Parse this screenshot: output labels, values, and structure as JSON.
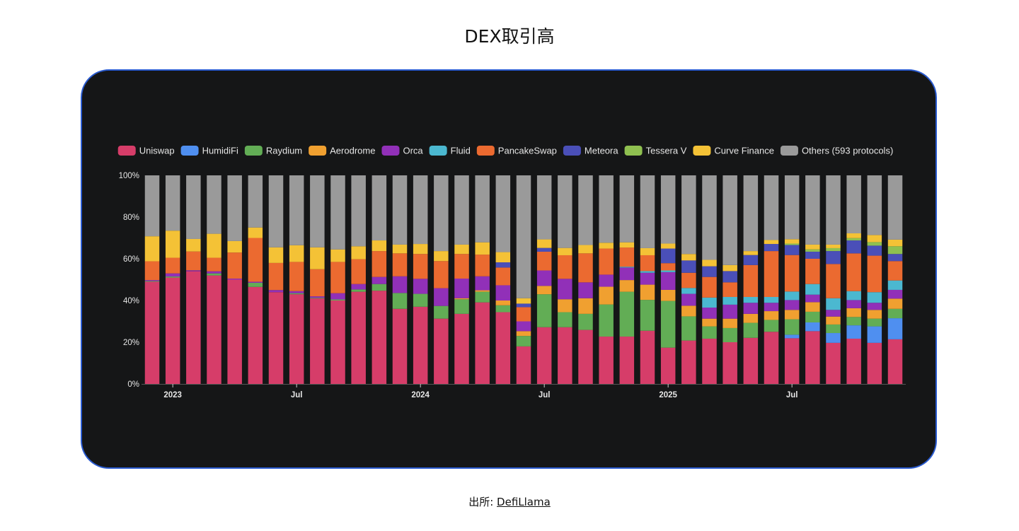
{
  "title": "DEX取引高",
  "source": {
    "label": "出所:",
    "link_text": "DefiLlama"
  },
  "chart_data": {
    "type": "bar",
    "stacked": true,
    "normalized": true,
    "title": "",
    "xlabel": "",
    "ylabel": "",
    "ylim": [
      0,
      100
    ],
    "y_ticks": [
      "0%",
      "20%",
      "40%",
      "60%",
      "80%",
      "100%"
    ],
    "x_tick_labels": [
      {
        "category": "2023-01",
        "label": "2023"
      },
      {
        "category": "2023-07",
        "label": "Jul"
      },
      {
        "category": "2024-01",
        "label": "2024"
      },
      {
        "category": "2024-07",
        "label": "Jul"
      },
      {
        "category": "2025-01",
        "label": "2025"
      },
      {
        "category": "2025-07",
        "label": "Jul"
      }
    ],
    "legend_position": "top",
    "grid": false,
    "background": "#151617",
    "categories": [
      "2022-12",
      "2023-01",
      "2023-02",
      "2023-03",
      "2023-04",
      "2023-05",
      "2023-06",
      "2023-07",
      "2023-08",
      "2023-09",
      "2023-10",
      "2023-11",
      "2023-12",
      "2024-01",
      "2024-02",
      "2024-03",
      "2024-04",
      "2024-05",
      "2024-06",
      "2024-07",
      "2024-08",
      "2024-09",
      "2024-10",
      "2024-11",
      "2024-12",
      "2025-01",
      "2025-02",
      "2025-03",
      "2025-04",
      "2025-05",
      "2025-06",
      "2025-07",
      "2025-08",
      "2025-09",
      "2025-10",
      "2025-11",
      "2025-12"
    ],
    "series": [
      {
        "name": "Uniswap",
        "color": "#d63d69",
        "values": [
          49,
          51,
          54,
          52,
          50,
          46.5,
          44,
          43,
          41,
          40,
          44.2,
          44.7,
          36,
          37,
          31.3,
          33.6,
          39.1,
          34.4,
          18,
          27.2,
          27.2,
          25.9,
          22.7,
          22.7,
          25.5,
          17.4,
          20.8,
          21.7,
          20,
          22.1,
          25,
          21.9,
          25.3,
          19.7,
          21.7,
          19.7,
          21.4
        ]
      },
      {
        "name": "HumidiFi",
        "color": "#4f8ff0",
        "values": [
          0,
          0,
          0,
          0,
          0,
          0,
          0,
          0,
          0,
          0,
          0,
          0,
          0,
          0,
          0,
          0,
          0,
          0,
          0,
          0,
          0,
          0,
          0,
          0,
          0,
          0,
          0,
          0,
          0,
          0,
          0,
          1.7,
          4.2,
          4.7,
          6.4,
          7.9,
          10.1
        ]
      },
      {
        "name": "Raydium",
        "color": "#62ad55",
        "values": [
          0.3,
          0.5,
          0,
          1,
          0,
          2,
          0,
          0.5,
          0.3,
          0.5,
          1.1,
          3.2,
          7.6,
          6.2,
          6.1,
          7,
          5.1,
          3.3,
          5,
          15.8,
          7.2,
          7.7,
          15.4,
          21.5,
          14.8,
          22.4,
          11.6,
          5.9,
          6.8,
          7.2,
          5.7,
          7.4,
          5.1,
          4.1,
          4,
          3.7,
          4.5
        ]
      },
      {
        "name": "Aerodrome",
        "color": "#f0a030",
        "values": [
          0,
          0,
          0,
          0,
          0,
          0,
          0,
          0,
          0,
          0,
          0,
          0,
          0,
          0,
          0,
          0.5,
          0.7,
          2.3,
          2.3,
          4,
          6.2,
          7.5,
          8.5,
          5.6,
          7.3,
          5.3,
          5.1,
          3.7,
          4.5,
          4.3,
          4.2,
          4.5,
          4.6,
          3.8,
          4.2,
          4.2,
          4.9
        ]
      },
      {
        "name": "Orca",
        "color": "#9130b8",
        "values": [
          0.5,
          1.5,
          0.5,
          1,
          0.5,
          0.5,
          1,
          1,
          0.7,
          3,
          2.6,
          3.4,
          8,
          7.2,
          8.5,
          9.4,
          6.7,
          7.3,
          4.7,
          7.4,
          9.8,
          7.6,
          5.8,
          6,
          5.7,
          8.5,
          5.7,
          5.3,
          6.7,
          5.3,
          4,
          4.7,
          3.6,
          3.2,
          3.9,
          3.4,
          4.2
        ]
      },
      {
        "name": "Fluid",
        "color": "#4bb8d0",
        "values": [
          0,
          0,
          0,
          0,
          0,
          0,
          0,
          0,
          0,
          0,
          0,
          0,
          0,
          0,
          0,
          0,
          0,
          0,
          0,
          0,
          0,
          0,
          0,
          0.4,
          0.8,
          0.8,
          2.8,
          4.8,
          3.7,
          2.8,
          2.8,
          4.1,
          5.1,
          5.6,
          4.3,
          5.1,
          4.5
        ]
      },
      {
        "name": "PancakeSwap",
        "color": "#eb6a30",
        "values": [
          9,
          7.5,
          9,
          6.5,
          12.5,
          21,
          13,
          14,
          13,
          15,
          11.9,
          12.4,
          11,
          11.9,
          13,
          11.8,
          10.4,
          8.5,
          6.8,
          9,
          11.3,
          13.9,
          12.5,
          9.2,
          7.6,
          3.5,
          7.3,
          9.9,
          7,
          15.3,
          22,
          17.5,
          12.1,
          16.4,
          18.1,
          17.5,
          9.3
        ]
      },
      {
        "name": "Meteora",
        "color": "#4a4fb8",
        "values": [
          0,
          0,
          0,
          0,
          0,
          0,
          0,
          0,
          0,
          0,
          0,
          0,
          0,
          0,
          0,
          0,
          0,
          2.5,
          1.7,
          1.8,
          0,
          0,
          0,
          0,
          0,
          7,
          5.9,
          5.1,
          5.4,
          4.8,
          3.4,
          4.8,
          3.4,
          6.2,
          6.2,
          4.8,
          3.4
        ]
      },
      {
        "name": "Tessera V",
        "color": "#8fc050",
        "values": [
          0,
          0,
          0,
          0,
          0,
          0,
          0,
          0,
          0,
          0,
          0,
          0,
          0,
          0,
          0,
          0,
          0,
          0,
          0,
          0,
          0,
          0,
          0,
          0,
          0,
          0,
          0,
          0,
          0,
          0,
          0,
          0.7,
          1.1,
          1.4,
          1.1,
          1.7,
          3.7
        ]
      },
      {
        "name": "Curve Finance",
        "color": "#f4c236",
        "values": [
          12,
          13,
          6,
          11.5,
          5.5,
          5,
          7.5,
          8,
          10.5,
          6,
          6.2,
          5.1,
          4.2,
          4.8,
          4.8,
          4.5,
          5.9,
          4.9,
          2.6,
          4.1,
          3.5,
          4,
          2.8,
          2.5,
          3.4,
          2.4,
          3.1,
          3.1,
          2.9,
          1.9,
          1.9,
          2.1,
          2.3,
          1.7,
          2.3,
          3.4,
          3.2
        ]
      },
      {
        "name": "Others (593 protocols)",
        "color": "#9a9a9a",
        "values": [
          29.2,
          26.5,
          30.5,
          28,
          31.5,
          25,
          34.5,
          33.5,
          34.5,
          35.5,
          34,
          31.2,
          33.2,
          32.9,
          36.3,
          33.2,
          32.1,
          36.8,
          58.9,
          30.7,
          34.8,
          33.4,
          32.3,
          32.1,
          34.9,
          32.7,
          37.7,
          40.5,
          43,
          36.3,
          31,
          30.6,
          33.2,
          33.2,
          27.8,
          28.6,
          30.8
        ]
      }
    ]
  }
}
